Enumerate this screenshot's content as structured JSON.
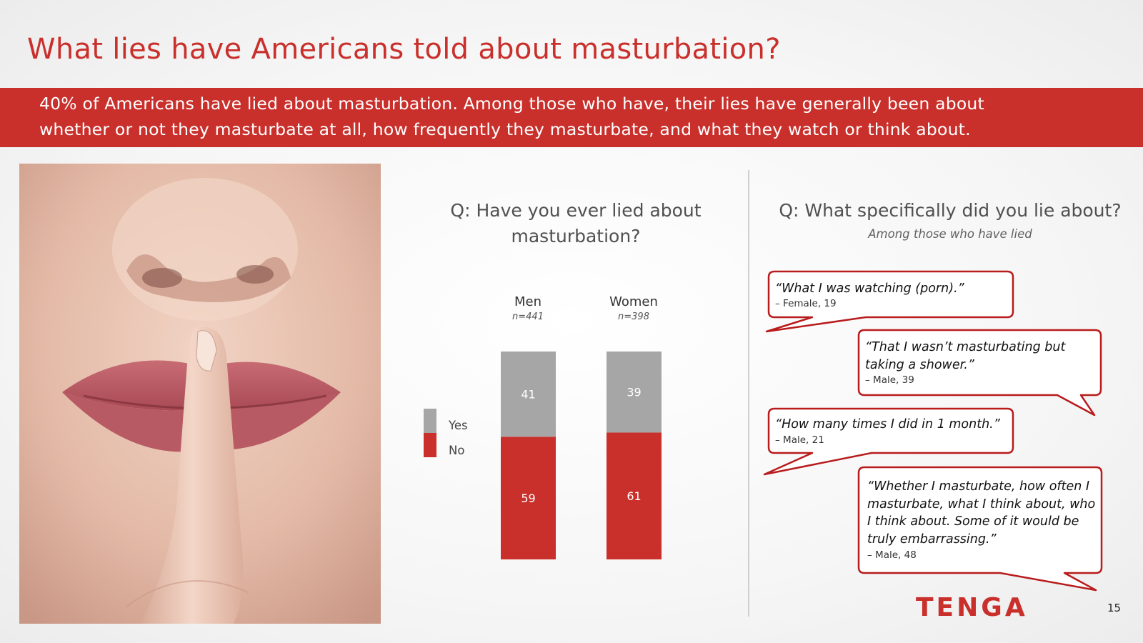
{
  "slide": {
    "title": "What lies have Americans told about masturbation?",
    "banner_line1": "40% of Americans have lied about masturbation. Among those who have, their lies have generally been about",
    "banner_line2": "whether or not they masturbate at all, how frequently they masturbate, and what they watch or think about.",
    "page_number": "15",
    "logo": "TENGA"
  },
  "chart_data": {
    "type": "bar",
    "stacked": true,
    "title_line1": "Q: Have you ever lied about",
    "title_line2": "masturbation?",
    "categories": [
      "Men",
      "Women"
    ],
    "sample_sizes": [
      "n=441",
      "n=398"
    ],
    "series": [
      {
        "name": "No",
        "values": [
          59,
          61
        ],
        "color": "#c9302c"
      },
      {
        "name": "Yes",
        "values": [
          41,
          39
        ],
        "color": "#a6a6a6"
      }
    ],
    "legend": {
      "position": "left",
      "yes_label": "Yes",
      "no_label": "No"
    },
    "ylim": [
      0,
      100
    ],
    "grid": false
  },
  "quotes": {
    "title": "Q: What specifically did you lie about?",
    "subtitle": "Among those who have lied",
    "items": [
      {
        "quote_lines": [
          "“What I was watching (porn).”"
        ],
        "attribution": "– Female, 19"
      },
      {
        "quote_lines": [
          "“That I wasn’t masturbating but",
          "taking a shower.”"
        ],
        "attribution": "– Male, 39"
      },
      {
        "quote_lines": [
          "“How many times I did in 1 month.”"
        ],
        "attribution": "– Male, 21"
      },
      {
        "quote_lines": [
          "“Whether I masturbate, how often I",
          "masturbate, what I think about, who",
          "I think about. Some of it would be",
          "truly embarrassing.”"
        ],
        "attribution": "– Male, 48"
      }
    ],
    "border_color": "#b81c1c"
  }
}
